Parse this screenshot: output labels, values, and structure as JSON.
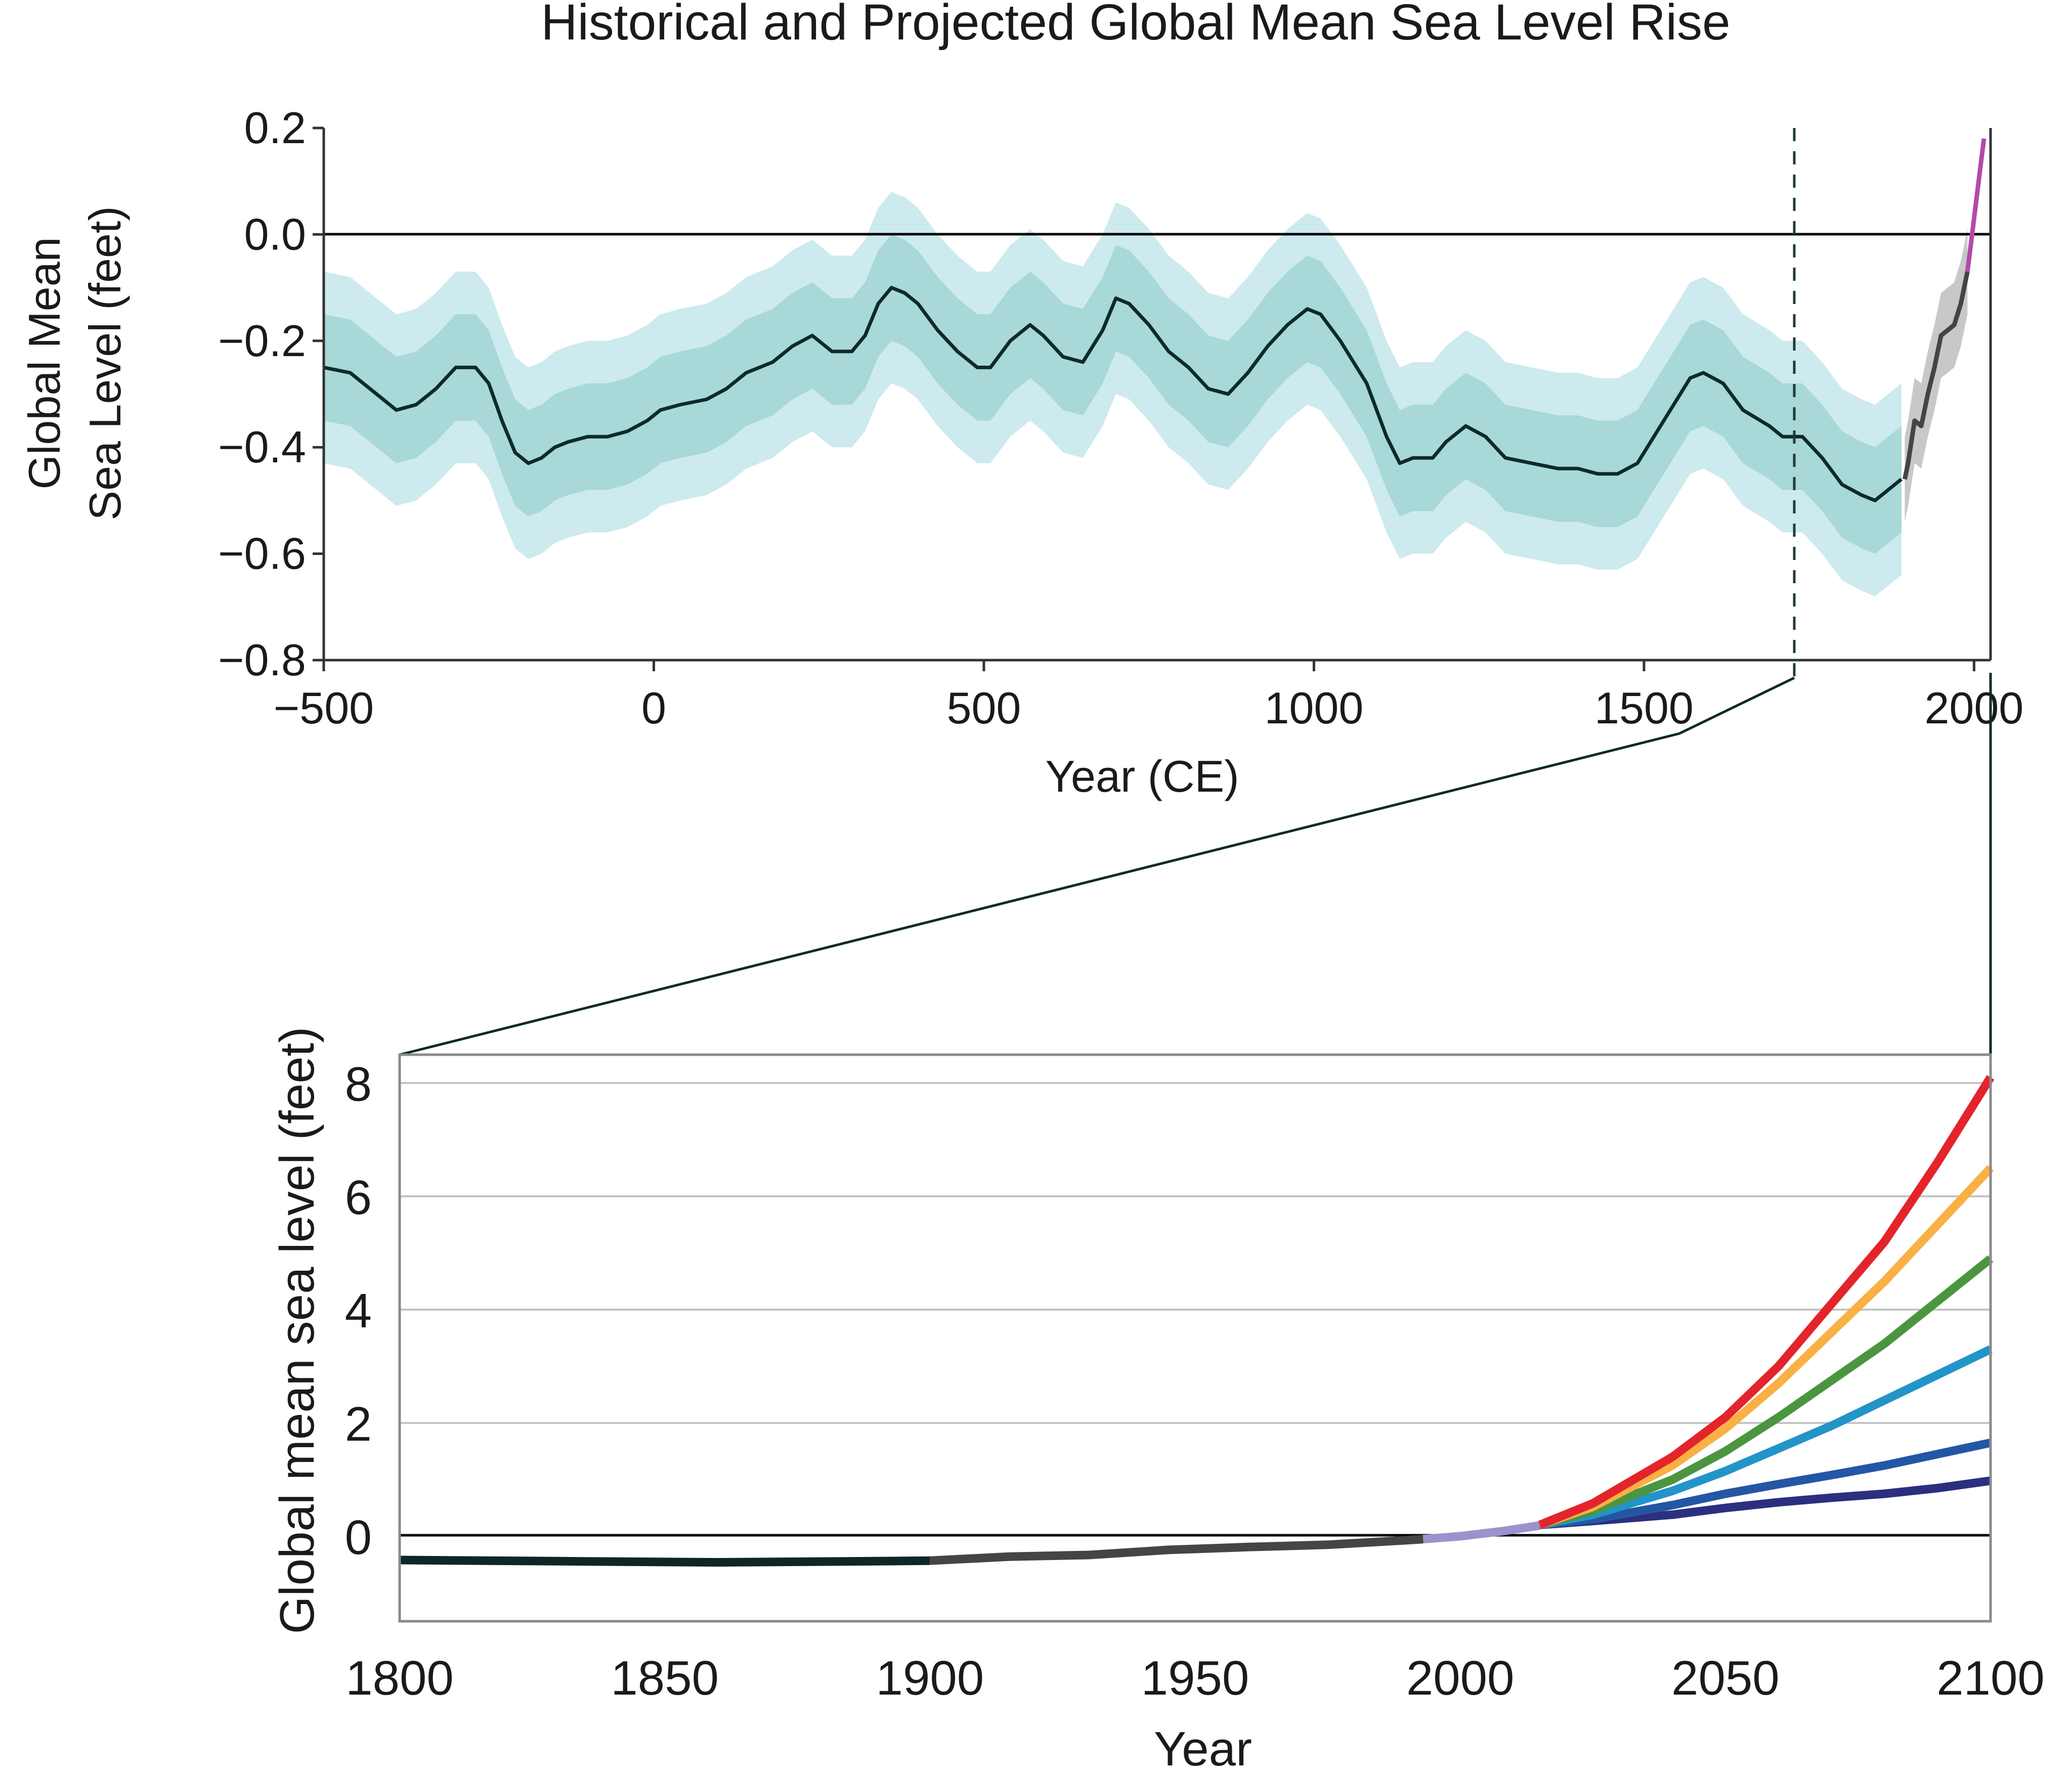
{
  "title": "Historical and Projected Global Mean Sea Level Rise",
  "chart_data": [
    {
      "type": "line",
      "xlabel": "Year (CE)",
      "ylabel_lines": [
        "Global Mean",
        "Sea Level (feet)"
      ],
      "xlim": [
        -500,
        2025
      ],
      "ylim": [
        -0.8,
        0.2
      ],
      "xticks": [
        -500,
        0,
        500,
        1000,
        1500,
        2000
      ],
      "xtick_labels": [
        "−500",
        "0",
        "500",
        "1000",
        "1500",
        "2000"
      ],
      "yticks": [
        -0.8,
        -0.6,
        -0.4,
        -0.2,
        0.0,
        0.2
      ],
      "ytick_labels": [
        "−0.8",
        "−0.6",
        "−0.4",
        "−0.2",
        "0.0",
        "0.2"
      ],
      "reference_line_y": 0,
      "divider_year": 1800,
      "colors": {
        "reconstruction": "#0e2a2a",
        "inner_band": "#a8d8d8",
        "outer_band": "#cdeaee",
        "tide_gauge": "#444444",
        "tide_band": "#c8c8c8",
        "satellite": "#b24aa8"
      },
      "series": [
        {
          "role": "reconstruction",
          "x": [
            -500,
            -460,
            -420,
            -390,
            -360,
            -330,
            -300,
            -270,
            -250,
            -230,
            -210,
            -190,
            -170,
            -150,
            -130,
            -100,
            -70,
            -40,
            -10,
            10,
            40,
            80,
            110,
            140,
            180,
            210,
            240,
            270,
            300,
            320,
            340,
            360,
            380,
            400,
            430,
            460,
            490,
            510,
            540,
            570,
            590,
            620,
            650,
            680,
            700,
            720,
            750,
            780,
            810,
            840,
            870,
            900,
            930,
            960,
            990,
            1010,
            1040,
            1080,
            1110,
            1130,
            1150,
            1180,
            1200,
            1230,
            1260,
            1290,
            1330,
            1370,
            1400,
            1430,
            1460,
            1490,
            1520,
            1550,
            1570,
            1590,
            1620,
            1650,
            1690,
            1710,
            1740,
            1770,
            1800,
            1830,
            1850,
            1870,
            1890
          ],
          "y": [
            -0.25,
            -0.26,
            -0.3,
            -0.33,
            -0.32,
            -0.29,
            -0.25,
            -0.25,
            -0.28,
            -0.35,
            -0.41,
            -0.43,
            -0.42,
            -0.4,
            -0.39,
            -0.38,
            -0.38,
            -0.37,
            -0.35,
            -0.33,
            -0.32,
            -0.31,
            -0.29,
            -0.26,
            -0.24,
            -0.21,
            -0.19,
            -0.22,
            -0.22,
            -0.19,
            -0.13,
            -0.1,
            -0.11,
            -0.13,
            -0.18,
            -0.22,
            -0.25,
            -0.25,
            -0.2,
            -0.17,
            -0.19,
            -0.23,
            -0.24,
            -0.18,
            -0.12,
            -0.13,
            -0.17,
            -0.22,
            -0.25,
            -0.29,
            -0.3,
            -0.26,
            -0.21,
            -0.17,
            -0.14,
            -0.15,
            -0.2,
            -0.28,
            -0.38,
            -0.43,
            -0.42,
            -0.42,
            -0.39,
            -0.36,
            -0.38,
            -0.42,
            -0.43,
            -0.44,
            -0.44,
            -0.45,
            -0.45,
            -0.43,
            -0.37,
            -0.31,
            -0.27,
            -0.26,
            -0.28,
            -0.33,
            -0.36,
            -0.38,
            -0.38,
            -0.42,
            -0.47,
            -0.49,
            -0.5,
            -0.48,
            -0.46
          ],
          "band_inner_halfwidth": 0.1,
          "band_outer_halfwidth": 0.18
        },
        {
          "role": "tide_gauge",
          "x": [
            1895,
            1900,
            1905,
            1910,
            1920,
            1930,
            1940,
            1950,
            1960,
            1970,
            1980,
            1990
          ],
          "y": [
            -0.46,
            -0.43,
            -0.39,
            -0.35,
            -0.36,
            -0.3,
            -0.25,
            -0.19,
            -0.18,
            -0.17,
            -0.13,
            -0.07
          ],
          "band_halfwidth": 0.08
        },
        {
          "role": "satellite",
          "x": [
            1990,
            1995,
            2000,
            2005,
            2010,
            2015
          ],
          "y": [
            -0.07,
            -0.02,
            0.03,
            0.08,
            0.13,
            0.18
          ]
        }
      ]
    },
    {
      "type": "line",
      "xlabel": "Year",
      "ylabel": "Global mean sea level (feet)",
      "xlim": [
        1800,
        2100
      ],
      "ylim": [
        -1.5,
        8.5
      ],
      "xticks": [
        1800,
        1850,
        1900,
        1950,
        2000,
        2050,
        2100
      ],
      "yticks": [
        0,
        2,
        4,
        6,
        8
      ],
      "grid": true,
      "reference_line_y": 0,
      "series": [
        {
          "role": "reconstruction",
          "color": "#0e2626",
          "x": [
            1800,
            1830,
            1860,
            1890,
            1900
          ],
          "y": [
            -0.42,
            -0.44,
            -0.46,
            -0.44,
            -0.43
          ]
        },
        {
          "role": "tide_gauge",
          "color": "#454545",
          "x": [
            1900,
            1915,
            1930,
            1945,
            1960,
            1975,
            1990,
            1993
          ],
          "y": [
            -0.43,
            -0.36,
            -0.33,
            -0.24,
            -0.19,
            -0.15,
            -0.07,
            -0.05
          ]
        },
        {
          "role": "satellite",
          "color": "#9d92cc",
          "x": [
            1993,
            2000,
            2008,
            2015
          ],
          "y": [
            -0.05,
            0.0,
            0.09,
            0.19
          ]
        },
        {
          "role": "scenario_1",
          "color": "#2b2f7e",
          "x": [
            2015,
            2025,
            2040,
            2050,
            2060,
            2070,
            2080,
            2090,
            2100
          ],
          "y": [
            0.2,
            0.27,
            0.38,
            0.5,
            0.6,
            0.68,
            0.75,
            0.85,
            0.98
          ]
        },
        {
          "role": "scenario_2",
          "color": "#2456a4",
          "x": [
            2015,
            2025,
            2040,
            2050,
            2060,
            2070,
            2080,
            2090,
            2100
          ],
          "y": [
            0.2,
            0.3,
            0.55,
            0.75,
            0.92,
            1.08,
            1.25,
            1.45,
            1.65
          ]
        },
        {
          "role": "scenario_3",
          "color": "#2394c8",
          "x": [
            2015,
            2025,
            2040,
            2050,
            2060,
            2070,
            2080,
            2090,
            2100
          ],
          "y": [
            0.2,
            0.38,
            0.8,
            1.15,
            1.55,
            1.95,
            2.4,
            2.85,
            3.3
          ]
        },
        {
          "role": "scenario_4",
          "color": "#4c9540",
          "x": [
            2015,
            2025,
            2040,
            2050,
            2060,
            2070,
            2080,
            2090,
            2100
          ],
          "y": [
            0.2,
            0.45,
            1.0,
            1.5,
            2.1,
            2.75,
            3.4,
            4.15,
            4.9
          ]
        },
        {
          "role": "scenario_5",
          "color": "#f9b044",
          "x": [
            2015,
            2025,
            2040,
            2050,
            2060,
            2070,
            2080,
            2090,
            2100
          ],
          "y": [
            0.2,
            0.52,
            1.25,
            1.9,
            2.7,
            3.6,
            4.5,
            5.5,
            6.5
          ]
        },
        {
          "role": "scenario_6",
          "color": "#e3242b",
          "x": [
            2015,
            2025,
            2040,
            2050,
            2060,
            2070,
            2080,
            2090,
            2100
          ],
          "y": [
            0.2,
            0.58,
            1.4,
            2.1,
            3.0,
            4.1,
            5.2,
            6.6,
            8.1
          ]
        }
      ]
    }
  ]
}
